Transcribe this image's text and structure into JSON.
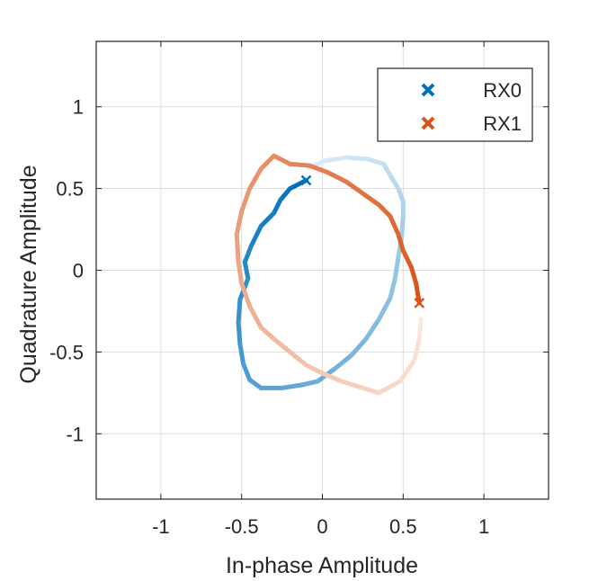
{
  "chart_data": {
    "type": "scatter",
    "title": "",
    "xlabel": "In-phase Amplitude",
    "ylabel": "Quadrature Amplitude",
    "xlim": [
      -1.4,
      1.4
    ],
    "ylim": [
      -1.4,
      1.4
    ],
    "xticks": [
      -1,
      -0.5,
      0,
      0.5,
      1
    ],
    "yticks": [
      -1,
      -0.5,
      0,
      0.5,
      1
    ],
    "xtick_labels": [
      "-1",
      "-0.5",
      "0",
      "0.5",
      "1"
    ],
    "ytick_labels": [
      "-1",
      "-0.5",
      "0",
      "0.5",
      "1"
    ],
    "grid": true,
    "legend_position": "top-right",
    "legend": [
      {
        "label": "RX0",
        "color": "#0072BD",
        "marker": "x"
      },
      {
        "label": "RX1",
        "color": "#D95319",
        "marker": "x"
      }
    ],
    "series": [
      {
        "name": "RX0",
        "color": "#0072BD",
        "fade_to": "#DCEBF7",
        "marker": "x",
        "points": [
          [
            -0.1,
            0.55
          ],
          [
            -0.2,
            0.5
          ],
          [
            -0.26,
            0.43
          ],
          [
            -0.3,
            0.35
          ],
          [
            -0.38,
            0.27
          ],
          [
            -0.44,
            0.15
          ],
          [
            -0.48,
            0.05
          ],
          [
            -0.46,
            -0.05
          ],
          [
            -0.51,
            -0.18
          ],
          [
            -0.52,
            -0.32
          ],
          [
            -0.51,
            -0.45
          ],
          [
            -0.49,
            -0.57
          ],
          [
            -0.45,
            -0.67
          ],
          [
            -0.38,
            -0.72
          ],
          [
            -0.25,
            -0.72
          ],
          [
            -0.12,
            -0.7
          ],
          [
            -0.03,
            -0.68
          ],
          [
            0.08,
            -0.6
          ],
          [
            0.18,
            -0.52
          ],
          [
            0.27,
            -0.42
          ],
          [
            0.35,
            -0.3
          ],
          [
            0.42,
            -0.17
          ],
          [
            0.45,
            -0.05
          ],
          [
            0.47,
            0.08
          ],
          [
            0.49,
            0.2
          ],
          [
            0.5,
            0.33
          ],
          [
            0.5,
            0.42
          ],
          [
            0.47,
            0.5
          ],
          [
            0.42,
            0.58
          ],
          [
            0.38,
            0.65
          ],
          [
            0.28,
            0.68
          ],
          [
            0.15,
            0.69
          ],
          [
            0.02,
            0.67
          ],
          [
            -0.08,
            0.63
          ]
        ]
      },
      {
        "name": "RX1",
        "color": "#D95319",
        "fade_to": "#FBE6DC",
        "marker": "x",
        "points": [
          [
            0.6,
            -0.2
          ],
          [
            0.58,
            -0.08
          ],
          [
            0.55,
            0.02
          ],
          [
            0.5,
            0.12
          ],
          [
            0.47,
            0.22
          ],
          [
            0.42,
            0.33
          ],
          [
            0.35,
            0.4
          ],
          [
            0.25,
            0.47
          ],
          [
            0.15,
            0.54
          ],
          [
            0.03,
            0.6
          ],
          [
            -0.08,
            0.64
          ],
          [
            -0.2,
            0.65
          ],
          [
            -0.3,
            0.7
          ],
          [
            -0.38,
            0.62
          ],
          [
            -0.45,
            0.5
          ],
          [
            -0.5,
            0.36
          ],
          [
            -0.53,
            0.22
          ],
          [
            -0.52,
            0.05
          ],
          [
            -0.5,
            -0.08
          ],
          [
            -0.45,
            -0.22
          ],
          [
            -0.38,
            -0.35
          ],
          [
            -0.3,
            -0.42
          ],
          [
            -0.2,
            -0.5
          ],
          [
            -0.1,
            -0.58
          ],
          [
            0.0,
            -0.63
          ],
          [
            0.12,
            -0.68
          ],
          [
            0.25,
            -0.72
          ],
          [
            0.35,
            -0.75
          ],
          [
            0.48,
            -0.68
          ],
          [
            0.57,
            -0.55
          ],
          [
            0.6,
            -0.42
          ],
          [
            0.61,
            -0.3
          ]
        ]
      }
    ]
  }
}
